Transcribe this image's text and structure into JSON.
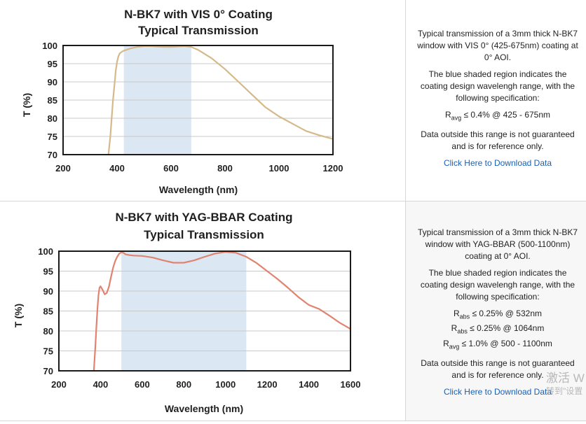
{
  "chart_data": [
    {
      "type": "line",
      "title": "N-BK7 with VIS 0° Coating",
      "subtitle": "Typical Transmission",
      "xlabel": "Wavelength (nm)",
      "ylabel": "T (%)",
      "xlim": [
        200,
        1200
      ],
      "ylim": [
        70,
        100
      ],
      "xticks": [
        "200",
        "400",
        "600",
        "800",
        "1000",
        "1200"
      ],
      "yticks": [
        "70",
        "75",
        "80",
        "85",
        "90",
        "95",
        "100"
      ],
      "shaded_band": [
        425,
        675
      ],
      "band_color": "#dbe8f3",
      "line_color": "#d6b98a",
      "grid": true,
      "series": [
        {
          "x": [
            368,
            375,
            380,
            385,
            390,
            395,
            400,
            405,
            410,
            420,
            430,
            450,
            475,
            500,
            525,
            550,
            575,
            600,
            625,
            650,
            675,
            700,
            750,
            800,
            850,
            900,
            950,
            1000,
            1050,
            1100,
            1150,
            1200
          ],
          "values": [
            70,
            75,
            80,
            85,
            89,
            93,
            95.5,
            97,
            97.8,
            98.4,
            98.7,
            99.2,
            99.6,
            99.8,
            99.8,
            99.7,
            99.6,
            99.6,
            99.7,
            99.8,
            99.6,
            98.8,
            96.5,
            93.5,
            90,
            86.5,
            83,
            80.5,
            78.5,
            76.5,
            75.3,
            74.3
          ]
        }
      ]
    },
    {
      "type": "line",
      "title": "N-BK7 with YAG-BBAR Coating",
      "subtitle": "Typical Transmission",
      "xlabel": "Wavelength (nm)",
      "ylabel": "T (%)",
      "xlim": [
        200,
        1600
      ],
      "ylim": [
        70,
        100
      ],
      "xticks": [
        "200",
        "400",
        "600",
        "800",
        "1000",
        "1200",
        "1400",
        "1600"
      ],
      "yticks": [
        "70",
        "75",
        "80",
        "85",
        "90",
        "95",
        "100"
      ],
      "shaded_band": [
        500,
        1100
      ],
      "band_color": "#dbe8f3",
      "line_color": "#e08370",
      "grid": true,
      "series": [
        {
          "x": [
            368,
            375,
            380,
            385,
            390,
            395,
            400,
            410,
            420,
            430,
            440,
            450,
            460,
            470,
            480,
            490,
            500,
            510,
            520,
            540,
            560,
            600,
            650,
            700,
            750,
            800,
            850,
            900,
            950,
            1000,
            1050,
            1100,
            1150,
            1200,
            1250,
            1300,
            1350,
            1400,
            1450,
            1500,
            1550,
            1600
          ],
          "values": [
            70,
            76,
            81,
            85.5,
            89,
            90.8,
            91.2,
            90.3,
            89.2,
            89.5,
            91,
            93.5,
            95.8,
            97.5,
            98.6,
            99.4,
            99.7,
            99.6,
            99.2,
            99,
            98.9,
            98.8,
            98.4,
            97.7,
            97.1,
            97.1,
            97.7,
            98.6,
            99.4,
            99.8,
            99.6,
            98.6,
            97,
            95,
            93,
            90.8,
            88.5,
            86.5,
            85.5,
            83.8,
            82,
            80.5
          ]
        }
      ]
    }
  ],
  "panels": [
    {
      "description": "Typical transmission of a 3mm thick N-BK7 window with VIS 0° (425-675nm) coating at 0° AOI.",
      "region_note": "The blue shaded region indicates the coating design wavelengh range, with the following specification:",
      "specs": [
        {
          "symbol": "R",
          "sub": "avg",
          "text": " ≤ 0.4% @ 425 - 675nm"
        }
      ],
      "disclaimer": "Data outside this range is not guaranteed and is for reference only.",
      "link": "Click Here to Download Data"
    },
    {
      "description": "Typical transmission of a 3mm thick N-BK7 window with YAG-BBAR (500-1100nm) coating at 0° AOI.",
      "region_note": "The blue shaded region indicates the coating design wavelengh range, with the following specification:",
      "specs": [
        {
          "symbol": "R",
          "sub": "abs",
          "text": " ≤ 0.25% @ 532nm"
        },
        {
          "symbol": "R",
          "sub": "abs",
          "text": " ≤ 0.25% @ 1064nm"
        },
        {
          "symbol": "R",
          "sub": "avg",
          "text": " ≤ 1.0% @ 500 - 1100nm"
        }
      ],
      "disclaimer": "Data outside this range is not guaranteed and is for reference only.",
      "link": "Click Here to Download Data"
    }
  ],
  "overlay": {
    "activate_line1": "激活 W",
    "activate_line2": "转到\"设置"
  }
}
